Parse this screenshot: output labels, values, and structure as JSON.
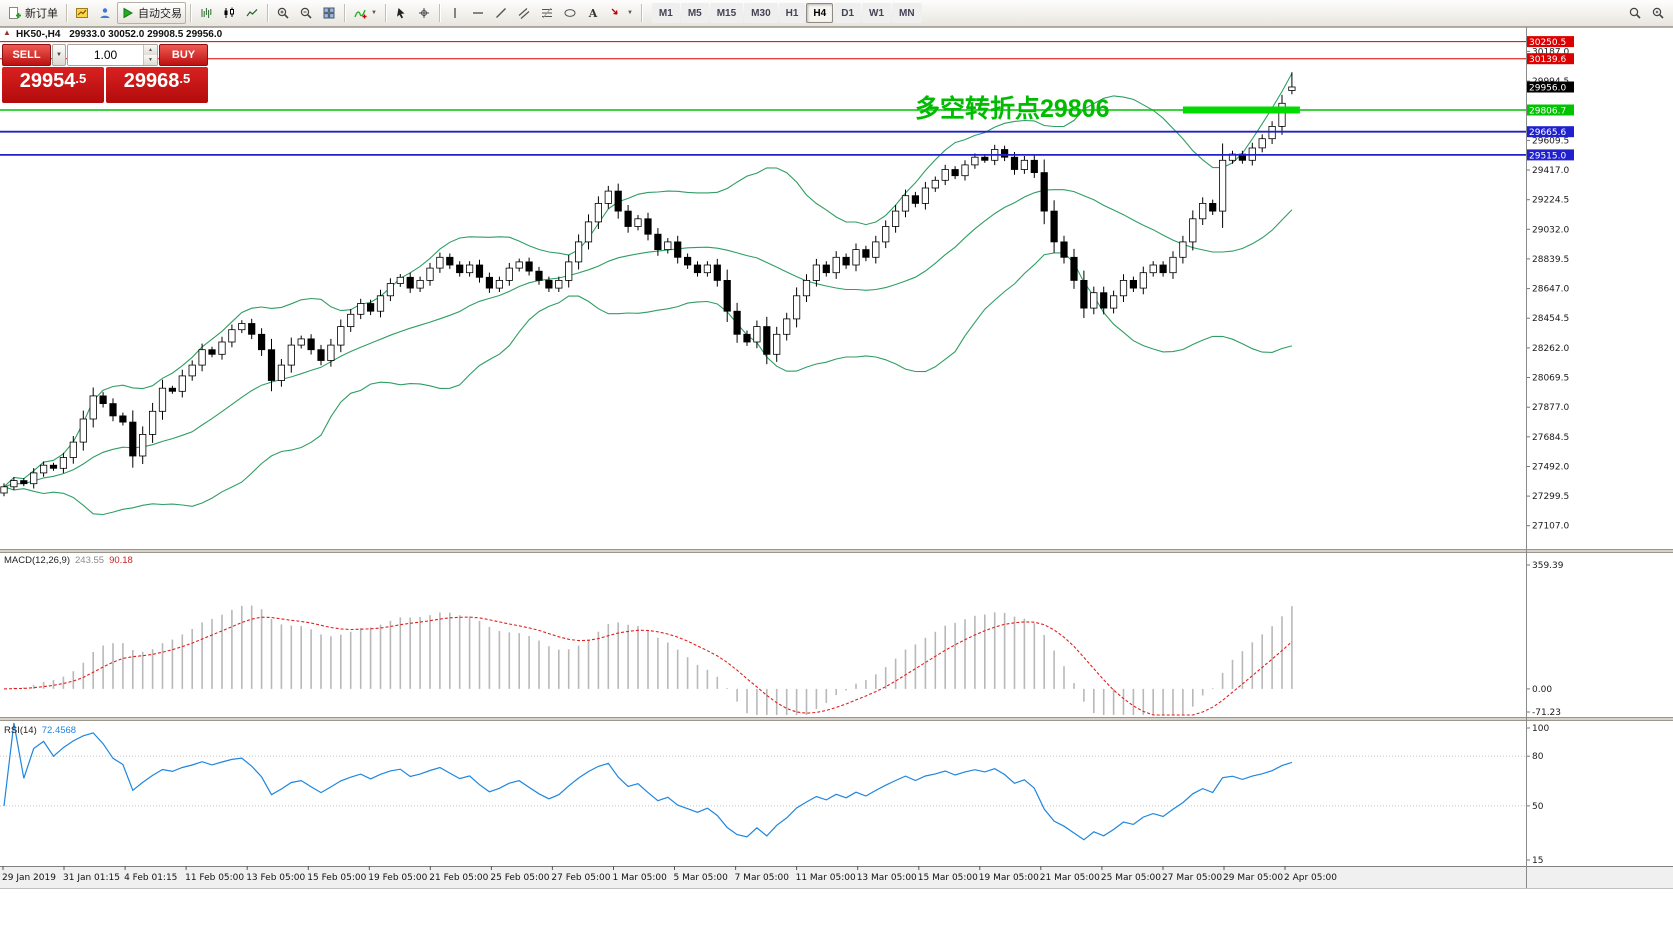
{
  "toolbar": {
    "items": [
      {
        "name": "new-order-button",
        "icon": "new-order-icon",
        "label": "新订单"
      },
      {
        "sep": true
      },
      {
        "name": "charts-button",
        "icon": "charts-icon"
      },
      {
        "name": "profiles-button",
        "icon": "profiles-icon"
      },
      {
        "name": "auto-trading-button",
        "icon": "autotrade-icon",
        "label": "自动交易",
        "bordered": true
      },
      {
        "sep": true
      },
      {
        "name": "bar-chart-button",
        "icon": "bars-icon"
      },
      {
        "name": "candle-chart-button",
        "icon": "candles-icon"
      },
      {
        "name": "line-chart-button",
        "icon": "linechart-icon"
      },
      {
        "sep": true
      },
      {
        "name": "zoom-in-button",
        "icon": "zoom-in-icon"
      },
      {
        "name": "zoom-out-button",
        "icon": "zoom-out-icon"
      },
      {
        "name": "tile-windows-button",
        "icon": "tile-icon"
      },
      {
        "sep": true
      },
      {
        "name": "indicators-button",
        "icon": "indicators-icon",
        "caret": true
      },
      {
        "sep": true
      },
      {
        "name": "cursor-button",
        "icon": "cursor-icon"
      },
      {
        "name": "crosshair-button",
        "icon": "crosshair-icon"
      },
      {
        "sep": true
      },
      {
        "name": "vertical-line-button",
        "icon": "vline-icon"
      },
      {
        "name": "horizontal-line-button",
        "icon": "hline-icon"
      },
      {
        "name": "trendline-button",
        "icon": "trendline-icon"
      },
      {
        "name": "equidistant-channel-button",
        "icon": "channel-icon"
      },
      {
        "name": "fibonacci-button",
        "icon": "fibo-icon"
      },
      {
        "name": "shapes-button",
        "icon": "shapes-icon"
      },
      {
        "name": "text-label-button",
        "icon": "text-icon"
      },
      {
        "name": "arrows-button",
        "icon": "arrows-icon",
        "caret": true
      },
      {
        "sep": true
      }
    ],
    "timeframes": [
      "M1",
      "M5",
      "M15",
      "M30",
      "H1",
      "H4",
      "D1",
      "W1",
      "MN"
    ],
    "active_timeframe": "H4",
    "right_items": [
      {
        "name": "search-button",
        "icon": "search-icon"
      },
      {
        "name": "zoom-window-button",
        "icon": "zoomwin-icon"
      }
    ]
  },
  "header": {
    "symbol_title": "HK50-,H4",
    "ohlc": "29933.0 30052.0 29908.5 29956.0"
  },
  "trade_panel": {
    "sell_label": "SELL",
    "buy_label": "BUY",
    "volume": "1.00",
    "sell_price_main": "29954",
    "sell_price_sup": ".5",
    "buy_price_main": "29968",
    "buy_price_sup": ".5"
  },
  "chart_data": {
    "type": "candlestick",
    "symbol": "HK50-",
    "timeframe": "H4",
    "title_ohlc": [
      29933.0,
      30052.0,
      29908.5,
      29956.0
    ],
    "closes": [
      27360,
      27400,
      27380,
      27450,
      27500,
      27480,
      27550,
      27650,
      27800,
      27950,
      27900,
      27820,
      27780,
      27560,
      27700,
      27850,
      28000,
      27980,
      28080,
      28150,
      28250,
      28220,
      28300,
      28380,
      28420,
      28350,
      28250,
      28050,
      28150,
      28280,
      28320,
      28250,
      28180,
      28280,
      28400,
      28480,
      28550,
      28500,
      28600,
      28680,
      28720,
      28650,
      28700,
      28780,
      28850,
      28800,
      28750,
      28800,
      28720,
      28650,
      28700,
      28780,
      28820,
      28760,
      28700,
      28650,
      28700,
      28820,
      28950,
      29080,
      29200,
      29280,
      29150,
      29050,
      29100,
      29000,
      28900,
      28950,
      28850,
      28800,
      28750,
      28800,
      28700,
      28500,
      28350,
      28300,
      28400,
      28220,
      28350,
      28450,
      28600,
      28700,
      28800,
      28750,
      28850,
      28800,
      28900,
      28850,
      28950,
      29050,
      29150,
      29250,
      29200,
      29300,
      29350,
      29420,
      29380,
      29450,
      29500,
      29480,
      29550,
      29500,
      29420,
      29480,
      29400,
      29150,
      28950,
      28850,
      28700,
      28520,
      28620,
      28520,
      28600,
      28700,
      28650,
      28750,
      28800,
      28750,
      28850,
      28950,
      29100,
      29200,
      29150,
      29480,
      29520,
      29480,
      29560,
      29620,
      29700,
      29850,
      29956
    ],
    "last_candle": {
      "o": 29933.0,
      "h": 30052.0,
      "l": 29908.5,
      "c": 29956.0
    },
    "indicators": {
      "bollinger": {
        "period": 20,
        "deviation": 2,
        "color": "#2f9e63"
      },
      "macd": {
        "label": "MACD(12,26,9)",
        "value_main": "243.55",
        "value_signal": "90.18",
        "axis_labels": [
          {
            "v": 359.39,
            "t": "359.39"
          },
          {
            "v": 0,
            "t": "0.00"
          },
          {
            "v": -71.23,
            "t": "-71.23"
          }
        ]
      },
      "rsi": {
        "label": "RSI(14)",
        "value": "72.4568",
        "axis_labels": [
          {
            "v": 100,
            "t": "100"
          },
          {
            "v": 80,
            "t": "80"
          },
          {
            "v": 50,
            "t": "50"
          },
          {
            "v": 15,
            "t": "15"
          }
        ],
        "levels": [
          80,
          50
        ]
      }
    },
    "levels": [
      {
        "price": 30250.5,
        "label": "30250.5",
        "color": "#dd0000",
        "width": 1
      },
      {
        "price": 30139.6,
        "label": "30139.6",
        "color": "#dd0000",
        "width": 1
      },
      {
        "price": 29956.0,
        "label": "29956.0",
        "color": "#000000",
        "width": 0
      },
      {
        "price": 29806.7,
        "label": "29806.7",
        "color": "#00c400",
        "width": 1.6
      },
      {
        "price": 29665.6,
        "label": "29665.6",
        "color": "#2020cc",
        "width": 1.8
      },
      {
        "price": 29515.0,
        "label": "29515.0",
        "color": "#2020cc",
        "width": 1.8
      }
    ],
    "highlight_segment": {
      "price": 29806.7,
      "from_index": 119,
      "to_index": 130,
      "color": "#00dc00",
      "thickness": 7
    },
    "annotation": {
      "text": "多空转折点29806",
      "color": "#00bb00"
    },
    "y_axis_labels": [
      "30187.0",
      "29994.5",
      "29609.5",
      "29417.0",
      "29224.5",
      "29032.0",
      "28839.5",
      "28647.0",
      "28454.5",
      "28262.0",
      "28069.5",
      "27877.0",
      "27684.5",
      "27492.0",
      "27299.5",
      "27107.0"
    ],
    "x_labels": [
      "29 Jan 2019",
      "31 Jan 01:15",
      "4 Feb 01:15",
      "11 Feb 05:00",
      "13 Feb 05:00",
      "15 Feb 05:00",
      "19 Feb 05:00",
      "21 Feb 05:00",
      "25 Feb 05:00",
      "27 Feb 05:00",
      "1 Mar 05:00",
      "5 Mar 05:00",
      "7 Mar 05:00",
      "11 Mar 05:00",
      "13 Mar 05:00",
      "15 Mar 05:00",
      "19 Mar 05:00",
      "21 Mar 05:00",
      "25 Mar 05:00",
      "27 Mar 05:00",
      "29 Mar 05:00",
      "2 Apr 05:00"
    ]
  }
}
